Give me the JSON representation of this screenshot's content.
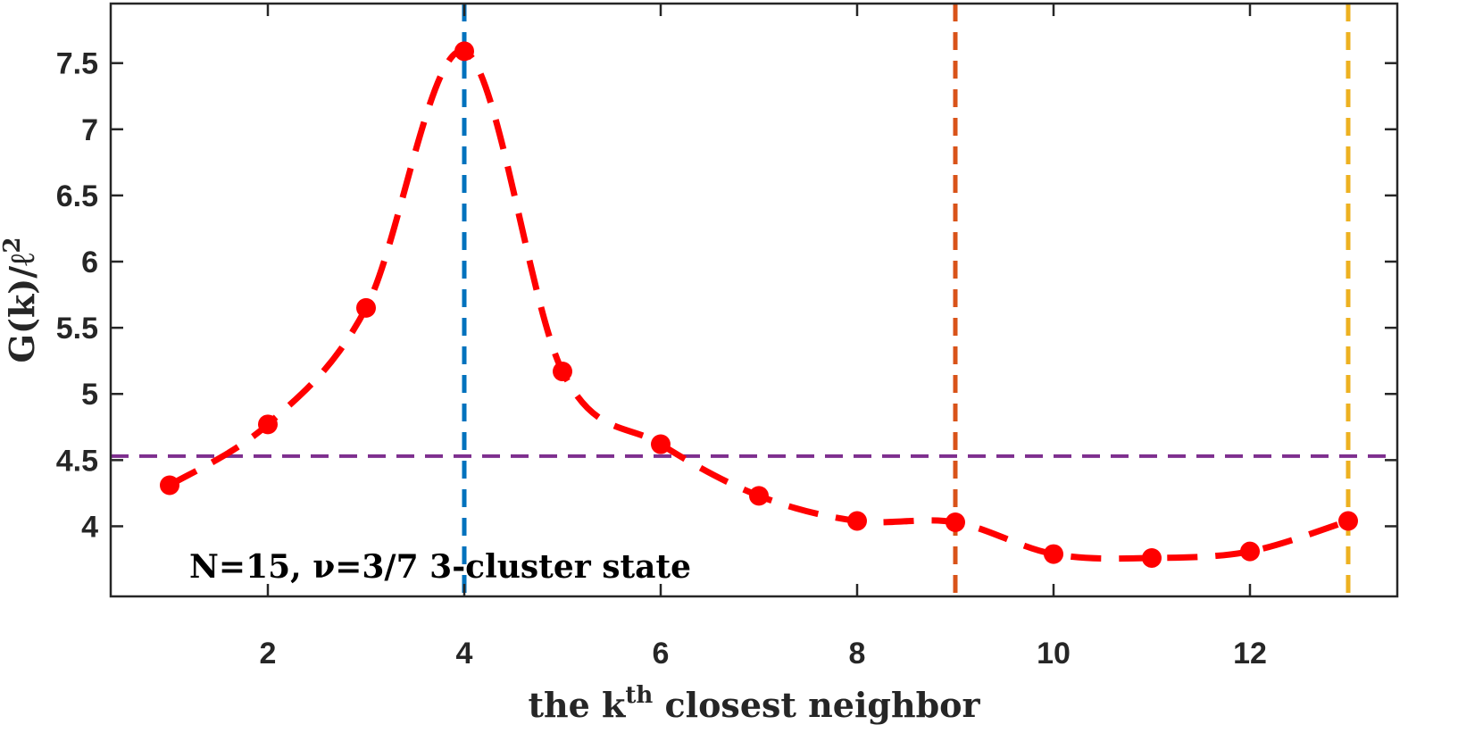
{
  "chart_data": {
    "type": "line",
    "title": "",
    "xlabel": "the k",
    "xlabel_superscript": "th",
    "xlabel_suffix": " closest neighbor",
    "ylabel": "G(k)/ℓ",
    "ylabel_superscript": "2",
    "xlim": [
      0.4,
      13.5
    ],
    "ylim": [
      3.47,
      7.95
    ],
    "xticks": [
      2,
      4,
      6,
      8,
      10,
      12
    ],
    "xtick_labels": [
      "2",
      "4",
      "6",
      "8",
      "10",
      "12"
    ],
    "yticks": [
      4,
      4.5,
      5,
      5.5,
      6,
      6.5,
      7,
      7.5
    ],
    "ytick_labels": [
      "4",
      "4.5",
      "5",
      "5.5",
      "6",
      "6.5",
      "7",
      "7.5"
    ],
    "grid": false,
    "series": [
      {
        "color": "#ff0000",
        "line_style": "dashed",
        "marker": "circle",
        "x": [
          1,
          2,
          3,
          4,
          5,
          6,
          7,
          8,
          9,
          10,
          11,
          12,
          13
        ],
        "y": [
          4.31,
          4.77,
          5.65,
          7.59,
          5.17,
          4.62,
          4.23,
          4.04,
          4.03,
          3.79,
          3.76,
          3.81,
          4.04
        ]
      }
    ],
    "reference_lines": [
      {
        "orientation": "horizontal",
        "value": 4.53,
        "color": "#7e2f8e"
      },
      {
        "orientation": "vertical",
        "value": 4,
        "color": "#0072bd"
      },
      {
        "orientation": "vertical",
        "value": 9,
        "color": "#d95319"
      },
      {
        "orientation": "vertical",
        "value": 13,
        "color": "#edb120"
      }
    ],
    "annotations": [
      {
        "text": "N=15,  ν=3/7 3-cluster state"
      }
    ]
  }
}
